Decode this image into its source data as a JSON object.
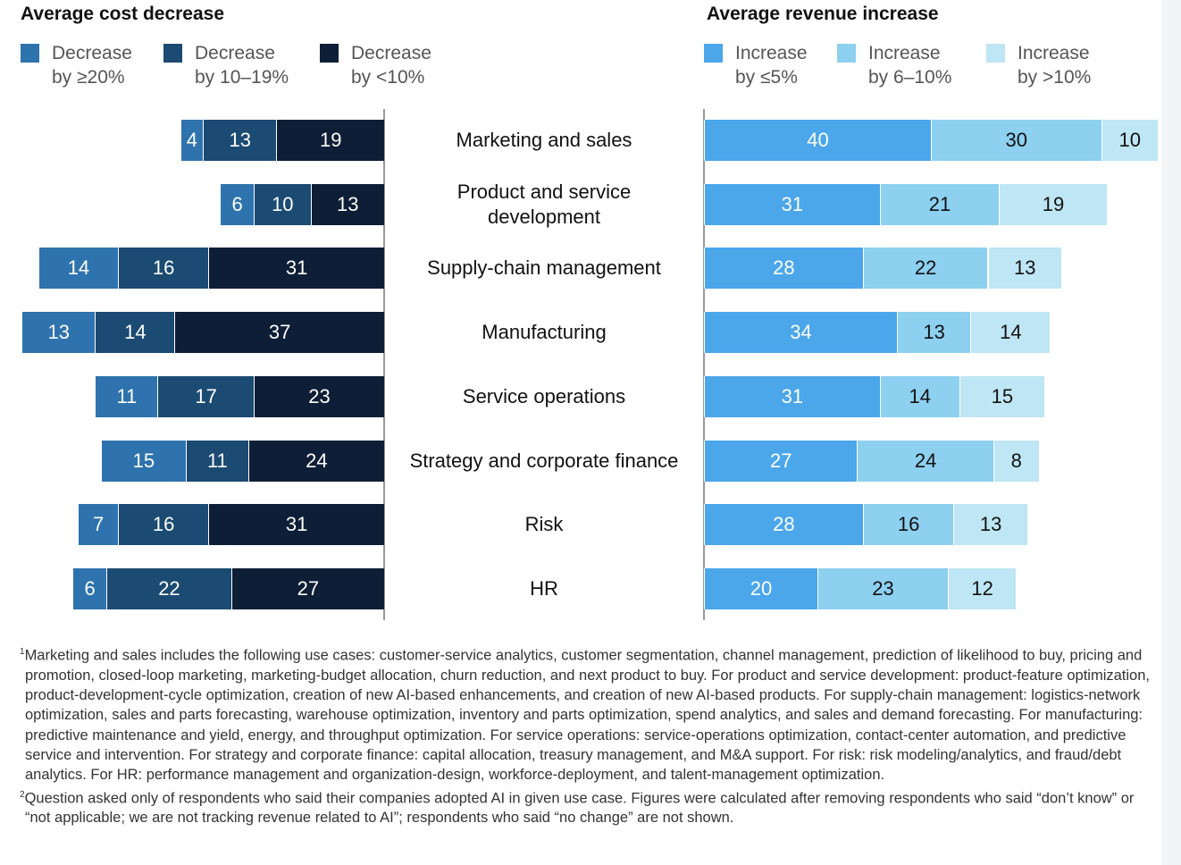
{
  "chart_data": [
    {
      "type": "bar",
      "stacked": true,
      "orientation": "horizontal",
      "direction": "leftward",
      "title": "Average cost decrease",
      "categories": [
        "Marketing and sales",
        "Product and service development",
        "Supply-chain management",
        "Manufacturing",
        "Service operations",
        "Strategy and corporate finance",
        "Risk",
        "HR"
      ],
      "series": [
        {
          "name_lines": [
            "Decrease",
            "by ≥20%"
          ],
          "color": "#2e73ad",
          "values": [
            4,
            6,
            14,
            13,
            11,
            15,
            7,
            6
          ]
        },
        {
          "name_lines": [
            "Decrease",
            "by 10–19%"
          ],
          "color": "#1b4a72",
          "values": [
            13,
            10,
            16,
            14,
            17,
            11,
            16,
            22
          ]
        },
        {
          "name_lines": [
            "Decrease",
            "by <10%"
          ],
          "color": "#0e1e36",
          "values": [
            19,
            13,
            31,
            37,
            23,
            24,
            31,
            27
          ]
        }
      ],
      "xlim": [
        0,
        64
      ],
      "legend": "top-left"
    },
    {
      "type": "bar",
      "stacked": true,
      "orientation": "horizontal",
      "direction": "rightward",
      "title": "Average revenue increase",
      "categories": [
        "Marketing and sales",
        "Product and service development",
        "Supply-chain management",
        "Manufacturing",
        "Service operations",
        "Strategy and corporate finance",
        "Risk",
        "HR"
      ],
      "series": [
        {
          "name_lines": [
            "Increase",
            "by ≤5%"
          ],
          "color": "#4ba6ea",
          "values": [
            40,
            31,
            28,
            34,
            31,
            27,
            28,
            20
          ]
        },
        {
          "name_lines": [
            "Increase",
            "by 6–10%"
          ],
          "color": "#8dd0f0",
          "values": [
            30,
            21,
            22,
            13,
            14,
            24,
            16,
            23
          ]
        },
        {
          "name_lines": [
            "Increase",
            "by >10%"
          ],
          "color": "#bfe6f4",
          "values": [
            10,
            19,
            13,
            14,
            15,
            8,
            13,
            12
          ]
        }
      ],
      "xlim": [
        0,
        80
      ],
      "legend": "top-left"
    }
  ],
  "category_lines": [
    [
      "Marketing and sales"
    ],
    [
      "Product and service",
      "development"
    ],
    [
      "Supply-chain management"
    ],
    [
      "Manufacturing"
    ],
    [
      "Service operations"
    ],
    [
      "Strategy and corporate finance"
    ],
    [
      "Risk"
    ],
    [
      "HR"
    ]
  ],
  "footnotes": [
    {
      "mark": "1",
      "text": "Marketing and sales includes the following use cases: customer-service analytics, customer segmentation, channel management, prediction of likelihood to buy, pricing and promotion, closed-loop marketing, marketing-budget allocation, churn reduction, and next product to buy. For product and service development: product-feature optimization, product-development-cycle optimization, creation of new AI-based enhancements, and creation of new AI-based products. For supply-chain management: logistics-network optimization, sales and parts forecasting, warehouse optimization, inventory and parts optimization, spend analytics, and sales and demand forecasting. For manufacturing: predictive maintenance and yield, energy, and throughput optimization. For service operations: service-operations optimization, contact-center automation, and predictive service and intervention. For strategy and corporate finance: capital allocation, treasury management, and M&A support. For risk: risk modeling/analytics, and fraud/debt analytics. For HR: performance management and organization-design, workforce-deployment, and talent-management optimization."
    },
    {
      "mark": "2",
      "text": "Question asked only of respondents who said their companies adopted AI in given use case. Figures were calculated after removing respondents who said “don’t know” or “not applicable; we are not tracking revenue related to AI”; respondents who said “no change” are not shown."
    }
  ]
}
